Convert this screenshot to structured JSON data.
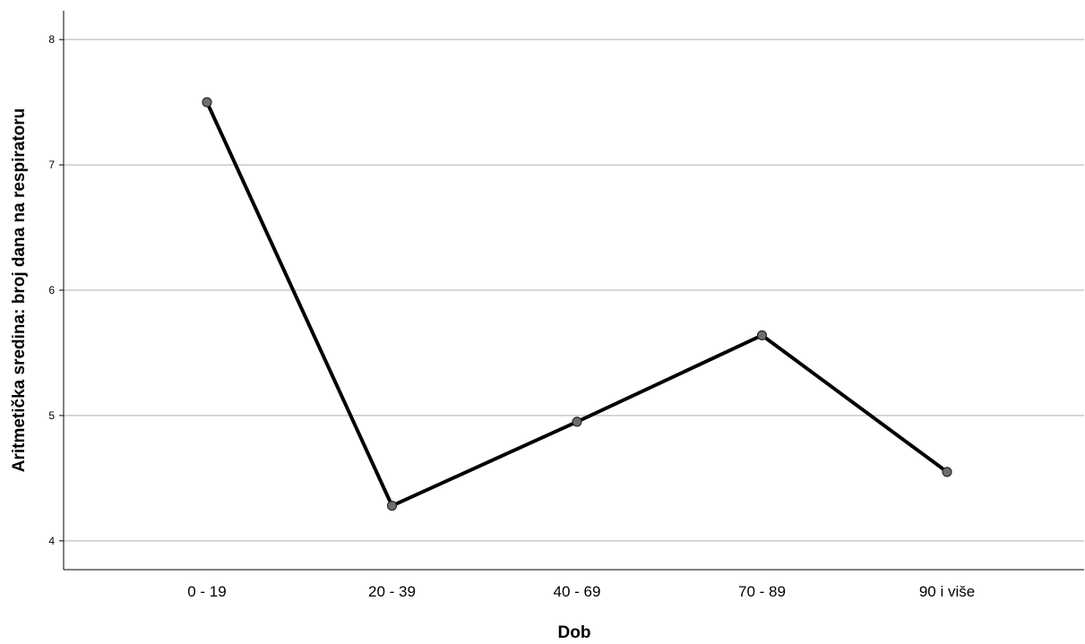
{
  "chart_data": {
    "type": "line",
    "categories": [
      "0 - 19",
      "20 - 39",
      "40 - 69",
      "70 - 89",
      "90 i više"
    ],
    "values": [
      7.5,
      4.28,
      4.95,
      5.64,
      4.55
    ],
    "xlabel": "Dob",
    "ylabel": "Aritmetička sredina:  broj dana na respiratoru",
    "ylim": [
      3.77,
      8.23
    ],
    "yticks": [
      4,
      5,
      6,
      7,
      8
    ],
    "grid": "horizontal",
    "colors": {
      "line": "#000000",
      "marker_fill": "#6e6e6e",
      "marker_stroke": "#2a2a2a",
      "grid": "#c8c8c8",
      "axis": "#000000"
    }
  }
}
